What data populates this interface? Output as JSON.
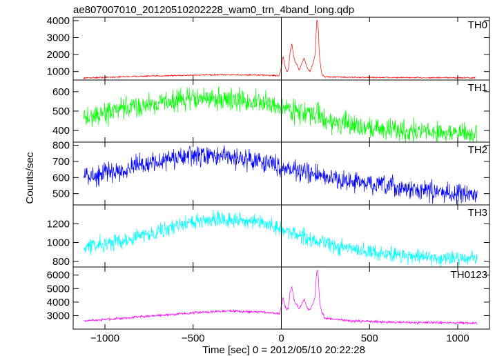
{
  "chart_data": {
    "type": "line",
    "title": "ae807007010_20120510202228_wam0_trn_4band_long.qdp",
    "xlabel": "Time [sec] 0 = 2012/05/10 20:22:28",
    "ylabel": "Counts/sec",
    "xlim": [
      -1180,
      1180
    ],
    "x_ticks": [
      -1000,
      -500,
      0,
      500,
      1000
    ],
    "x_tick_labels": [
      "−1000",
      "−500",
      "0",
      "500",
      "1000"
    ],
    "grid": false,
    "panels": [
      {
        "name": "TH0",
        "color": "#ff0000",
        "ylim": [
          500,
          4200
        ],
        "y_ticks": [
          1000,
          2000,
          3000,
          4000
        ],
        "y_tick_labels": [
          "1000",
          "2000",
          "3000",
          "4000"
        ],
        "baseline_x": [
          -1120,
          -800,
          -500,
          -300,
          -100,
          -20,
          200,
          240,
          400,
          700,
          1100
        ],
        "baseline_y": [
          620,
          720,
          790,
          810,
          790,
          760,
          740,
          690,
          660,
          640,
          630
        ],
        "noise": 40,
        "flare_x": [
          -10,
          0,
          10,
          20,
          30,
          40,
          50,
          60,
          70,
          80,
          90,
          100,
          110,
          120,
          130,
          140,
          150,
          160,
          170,
          180,
          190,
          195,
          200,
          205,
          210,
          215,
          220,
          225,
          230,
          240
        ],
        "flare_y": [
          800,
          1300,
          1900,
          1350,
          1000,
          1100,
          2200,
          2600,
          1900,
          1500,
          1400,
          1100,
          1300,
          1600,
          1800,
          1400,
          1150,
          1000,
          1200,
          1500,
          1900,
          2700,
          3900,
          4100,
          3400,
          2100,
          1600,
          1150,
          850,
          740
        ]
      },
      {
        "name": "TH1",
        "color": "#00ff00",
        "ylim": [
          340,
          660
        ],
        "y_ticks": [
          400,
          500,
          600
        ],
        "y_tick_labels": [
          "400",
          "500",
          "600"
        ],
        "baseline_x": [
          -1120,
          -900,
          -700,
          -500,
          -300,
          -100,
          100,
          200,
          300,
          500,
          700,
          900,
          1110
        ],
        "baseline_y": [
          460,
          510,
          545,
          565,
          560,
          540,
          500,
          470,
          440,
          415,
          400,
          390,
          380
        ],
        "noise": 55,
        "flare_x": [
          200,
          205,
          210,
          215
        ],
        "flare_y": [
          500,
          520,
          505,
          480
        ]
      },
      {
        "name": "TH2",
        "color": "#0000ff",
        "ylim": [
          430,
          820
        ],
        "y_ticks": [
          500,
          600,
          700,
          800
        ],
        "y_tick_labels": [
          "500",
          "600",
          "700",
          "800"
        ],
        "baseline_x": [
          -1120,
          -900,
          -700,
          -500,
          -300,
          -100,
          100,
          300,
          500,
          700,
          900,
          1110
        ],
        "baseline_y": [
          600,
          650,
          700,
          735,
          730,
          700,
          640,
          590,
          560,
          530,
          510,
          490
        ],
        "noise": 60,
        "flare_x": [],
        "flare_y": []
      },
      {
        "name": "TH3",
        "color": "#00ffff",
        "ylim": [
          740,
          1400
        ],
        "y_ticks": [
          800,
          1000,
          1200
        ],
        "y_tick_labels": [
          "800",
          "1000",
          "1200"
        ],
        "baseline_x": [
          -1120,
          -900,
          -700,
          -500,
          -400,
          -300,
          -100,
          100,
          300,
          500,
          700,
          900,
          1110
        ],
        "baseline_y": [
          950,
          1020,
          1120,
          1220,
          1250,
          1250,
          1200,
          1080,
          960,
          900,
          860,
          840,
          830
        ],
        "noise": 80,
        "flare_x": [],
        "flare_y": []
      },
      {
        "name": "TH0123",
        "color": "#ff00ff",
        "ylim": [
          2000,
          6600
        ],
        "y_ticks": [
          3000,
          4000,
          5000,
          6000
        ],
        "y_tick_labels": [
          "3000",
          "4000",
          "5000",
          "6000"
        ],
        "baseline_x": [
          -1120,
          -800,
          -500,
          -300,
          -100,
          0,
          200,
          240,
          400,
          700,
          1110
        ],
        "baseline_y": [
          2600,
          2900,
          3200,
          3350,
          3250,
          3150,
          3000,
          2800,
          2600,
          2500,
          2450
        ],
        "noise": 90,
        "flare_x": [
          -10,
          0,
          10,
          20,
          30,
          40,
          50,
          60,
          70,
          80,
          90,
          100,
          110,
          120,
          130,
          140,
          150,
          160,
          170,
          180,
          190,
          195,
          200,
          205,
          210,
          215,
          220,
          225,
          230,
          240
        ],
        "flare_y": [
          3200,
          3700,
          4300,
          3800,
          3400,
          3600,
          4800,
          5100,
          4300,
          3900,
          3800,
          3500,
          3700,
          4000,
          4200,
          3800,
          3550,
          3400,
          3600,
          3900,
          4300,
          5300,
          6200,
          6500,
          5800,
          4500,
          3900,
          3500,
          3200,
          3100
        ]
      }
    ]
  }
}
